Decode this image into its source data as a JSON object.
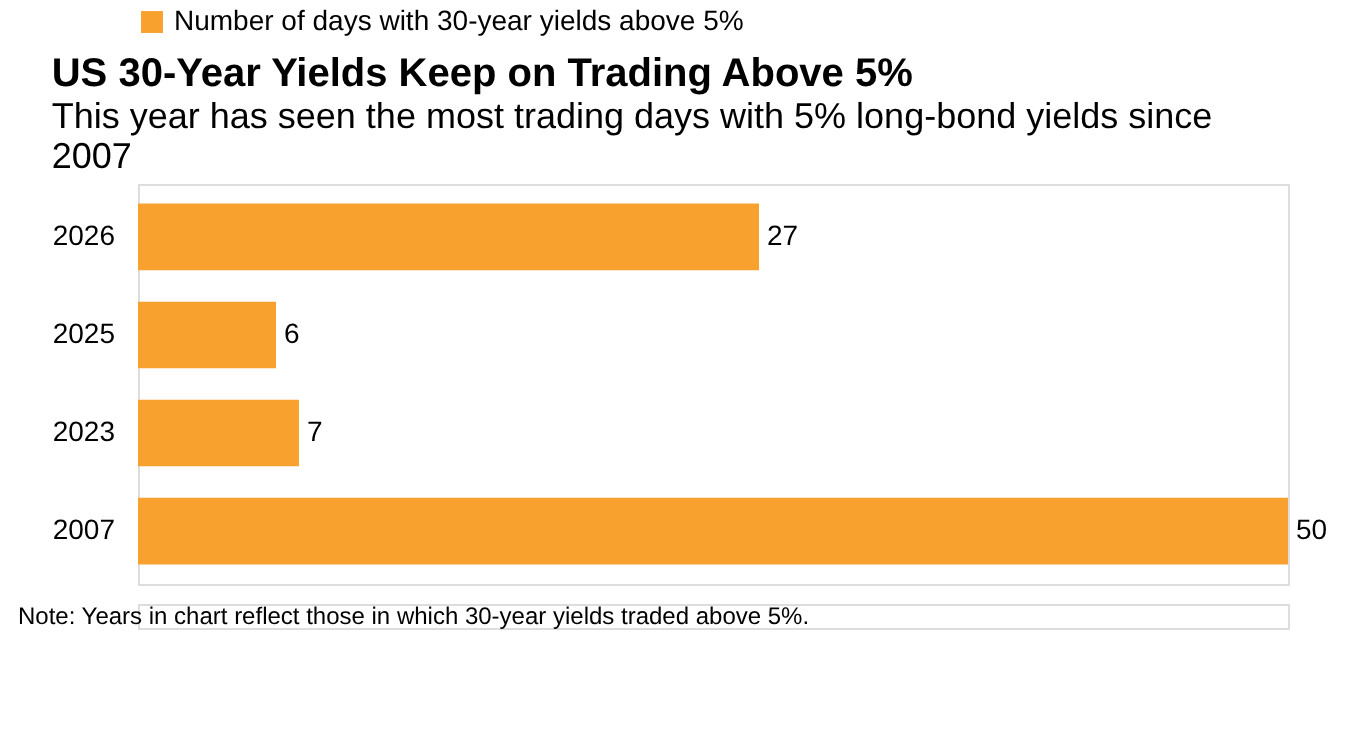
{
  "chart_data": {
    "type": "bar",
    "orientation": "horizontal",
    "title": "US 30-Year Yields Keep on Trading Above 5%",
    "subtitle": "This year has seen the most trading days with 5% long-bond yields since 2007",
    "categories": [
      "2026",
      "2025",
      "2023",
      "2007"
    ],
    "series": [
      {
        "name": "Number of days with 30-year yields above 5%",
        "color": "#f9a12f",
        "values": [
          27,
          6,
          7,
          50
        ]
      }
    ],
    "data_labels": true,
    "legend": "top left",
    "grid": false,
    "annotations": [
      "Note: Years in chart reflect those in which 30-year yields traded above 5%."
    ]
  }
}
